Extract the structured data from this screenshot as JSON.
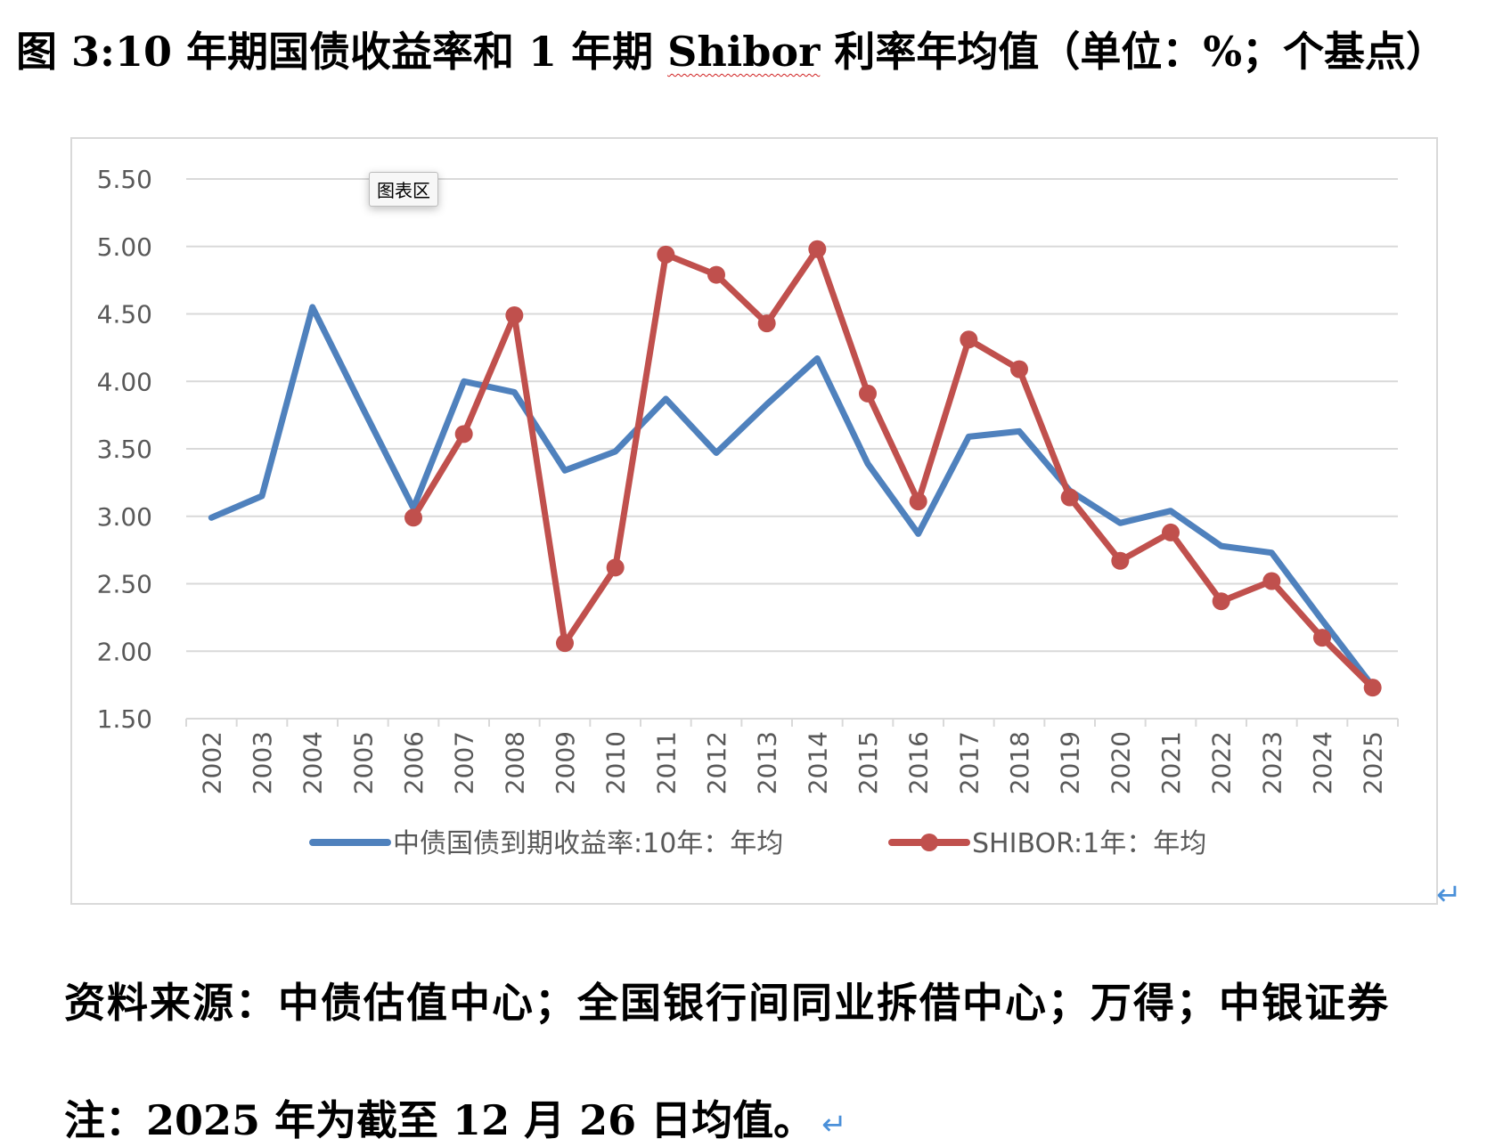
{
  "figure": {
    "title_prefix": "图 3:10 年期国债收益率和 1 年期 ",
    "title_spell": "Shibor",
    "title_suffix": " 利率年均值（单位：%；个基点）"
  },
  "tooltip": {
    "label": "图表区"
  },
  "paragraph_mark": "↵",
  "source_text": "资料来源：中债估值中心；全国银行间同业拆借中心；万得；中银证券",
  "note_text": "注：2025 年为截至 12 月 26 日均值。",
  "colors": {
    "series1": "#4f81bd",
    "series2": "#c0504d",
    "grid": "#d9d9d9",
    "axis_text": "#595959"
  },
  "chart_data": {
    "type": "line",
    "title": "",
    "xlabel": "",
    "ylabel": "",
    "ylim": [
      1.5,
      5.5
    ],
    "ytick_step": 0.5,
    "yticks": [
      "5.50",
      "5.00",
      "4.50",
      "4.00",
      "3.50",
      "3.00",
      "2.50",
      "2.00",
      "1.50"
    ],
    "grid": true,
    "legend_position": "bottom",
    "categories": [
      "2002",
      "2003",
      "2004",
      "2005",
      "2006",
      "2007",
      "2008",
      "2009",
      "2010",
      "2011",
      "2012",
      "2013",
      "2014",
      "2015",
      "2016",
      "2017",
      "2018",
      "2019",
      "2020",
      "2021",
      "2022",
      "2023",
      "2024",
      "2025"
    ],
    "series": [
      {
        "name": "中债国债到期收益率:10年：年均",
        "color": "#4f81bd",
        "markers": false,
        "values": [
          2.99,
          3.15,
          4.55,
          3.8,
          3.06,
          4.0,
          3.92,
          3.34,
          3.48,
          3.87,
          3.47,
          3.83,
          4.17,
          3.39,
          2.87,
          3.59,
          3.63,
          3.19,
          2.95,
          3.04,
          2.78,
          2.73,
          2.23,
          1.74
        ]
      },
      {
        "name": "SHIBOR:1年：年均",
        "color": "#c0504d",
        "markers": true,
        "values": [
          null,
          null,
          null,
          null,
          2.99,
          3.61,
          4.49,
          2.06,
          2.62,
          4.94,
          4.79,
          4.43,
          4.98,
          3.91,
          3.11,
          4.31,
          4.09,
          3.14,
          2.67,
          2.88,
          2.37,
          2.52,
          2.1,
          1.73
        ]
      }
    ]
  }
}
